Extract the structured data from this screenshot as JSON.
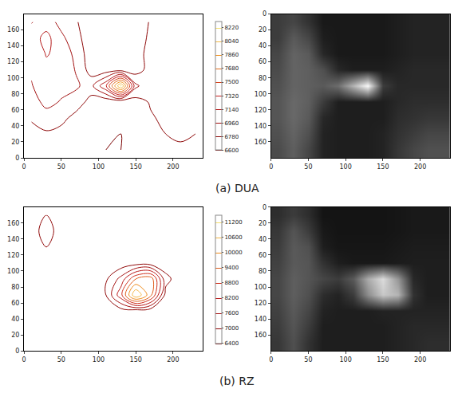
{
  "chart_data": [
    {
      "type": "contour",
      "caption": "(a) DUA",
      "x": [
        10,
        30,
        50,
        70,
        90,
        110,
        130,
        150,
        170,
        190,
        210,
        230
      ],
      "y": [
        10,
        30,
        50,
        70,
        90,
        110,
        130,
        150,
        170
      ],
      "z": [
        [
          6700,
          6720,
          6650,
          6620,
          6610,
          6600,
          6600,
          6620,
          6700,
          6750,
          6760,
          6750
        ],
        [
          6720,
          6750,
          6700,
          6640,
          6620,
          6610,
          6600,
          6640,
          6720,
          6780,
          6800,
          6780
        ],
        [
          6800,
          6900,
          6850,
          6700,
          6640,
          6620,
          6610,
          6660,
          6760,
          6820,
          6850,
          6820
        ],
        [
          6900,
          7000,
          6950,
          6900,
          6700,
          6640,
          6620,
          6700,
          6800,
          6850,
          6880,
          6850
        ],
        [
          6950,
          7050,
          7000,
          6980,
          6900,
          7300,
          8250,
          7000,
          6820,
          6880,
          6900,
          6870
        ],
        [
          6980,
          7100,
          7050,
          6950,
          6700,
          6680,
          6700,
          6700,
          6850,
          6900,
          6900,
          6880
        ],
        [
          7000,
          7150,
          7100,
          6900,
          6680,
          6650,
          6640,
          6700,
          6850,
          6920,
          6900,
          6880
        ],
        [
          7050,
          7200,
          7000,
          6850,
          6650,
          6640,
          6630,
          6680,
          6820,
          6900,
          6880,
          6860
        ],
        [
          6950,
          7050,
          6900,
          6800,
          6640,
          6630,
          6620,
          6660,
          6800,
          6880,
          6860,
          6850
        ]
      ],
      "xlim": [
        0,
        240
      ],
      "ylim": [
        0,
        180
      ],
      "xticks": [
        0,
        50,
        100,
        150,
        200
      ],
      "yticks": [
        0,
        20,
        40,
        60,
        80,
        100,
        120,
        140,
        160
      ],
      "zlim": [
        6600,
        8300
      ],
      "zticks": [
        6600,
        6780,
        6960,
        7140,
        7320,
        7500,
        7680,
        7860,
        8040,
        8220
      ]
    },
    {
      "type": "heatmap",
      "x": [
        10,
        30,
        50,
        70,
        90,
        110,
        130,
        150,
        170,
        190,
        210,
        230
      ],
      "y": [
        10,
        30,
        50,
        70,
        90,
        110,
        130,
        150,
        170
      ],
      "z": [
        [
          60,
          70,
          50,
          25,
          25,
          25,
          25,
          25,
          30,
          35,
          35,
          35
        ],
        [
          60,
          90,
          70,
          30,
          25,
          25,
          25,
          25,
          30,
          35,
          35,
          35
        ],
        [
          70,
          100,
          90,
          40,
          25,
          25,
          25,
          25,
          30,
          35,
          35,
          35
        ],
        [
          75,
          100,
          95,
          80,
          40,
          30,
          30,
          30,
          35,
          40,
          40,
          40
        ],
        [
          80,
          100,
          95,
          90,
          110,
          180,
          250,
          60,
          40,
          40,
          40,
          40
        ],
        [
          85,
          105,
          95,
          60,
          30,
          30,
          30,
          30,
          40,
          45,
          45,
          45
        ],
        [
          85,
          105,
          90,
          40,
          30,
          30,
          30,
          30,
          45,
          50,
          55,
          55
        ],
        [
          80,
          100,
          80,
          35,
          30,
          30,
          30,
          35,
          50,
          60,
          70,
          70
        ],
        [
          75,
          95,
          70,
          35,
          30,
          30,
          30,
          35,
          55,
          70,
          80,
          80
        ]
      ],
      "xlim": [
        0,
        240
      ],
      "ylim": [
        180,
        0
      ],
      "xticks": [
        0,
        50,
        100,
        150,
        200
      ],
      "yticks": [
        0,
        20,
        40,
        60,
        80,
        100,
        120,
        140,
        160
      ],
      "zlim": [
        0,
        255
      ]
    },
    {
      "type": "contour",
      "caption": "(b) RZ",
      "x": [
        10,
        30,
        50,
        70,
        90,
        110,
        130,
        150,
        170,
        190,
        210,
        230
      ],
      "y": [
        10,
        30,
        50,
        70,
        90,
        110,
        130,
        150,
        170
      ],
      "z": [
        [
          6600,
          6650,
          6600,
          6500,
          6450,
          6450,
          6450,
          6450,
          6500,
          6550,
          6550,
          6550
        ],
        [
          6650,
          6700,
          6650,
          6500,
          6450,
          6450,
          6450,
          6450,
          6500,
          6550,
          6550,
          6550
        ],
        [
          6700,
          6800,
          6700,
          6550,
          6500,
          6600,
          6700,
          6650,
          6550,
          6600,
          6600,
          6600
        ],
        [
          6750,
          6850,
          6750,
          6700,
          6650,
          7000,
          8600,
          11200,
          9600,
          6800,
          6650,
          6600
        ],
        [
          6800,
          6900,
          6800,
          6750,
          6700,
          6900,
          7800,
          9400,
          9800,
          7200,
          6650,
          6600
        ],
        [
          6850,
          6950,
          6850,
          6750,
          6600,
          6550,
          6600,
          6700,
          6650,
          6650,
          6600,
          6600
        ],
        [
          6900,
          7000,
          6900,
          6700,
          6550,
          6500,
          6500,
          6550,
          6600,
          6600,
          6600,
          6600
        ],
        [
          6950,
          7050,
          6950,
          6700,
          6550,
          6500,
          6500,
          6550,
          6600,
          6600,
          6600,
          6600
        ],
        [
          6900,
          7000,
          6900,
          6650,
          6550,
          6500,
          6500,
          6550,
          6600,
          6600,
          6600,
          6600
        ]
      ],
      "xlim": [
        0,
        240
      ],
      "ylim": [
        0,
        180
      ],
      "xticks": [
        0,
        50,
        100,
        150,
        200
      ],
      "yticks": [
        0,
        20,
        40,
        60,
        80,
        100,
        120,
        140,
        160
      ],
      "zlim": [
        6400,
        11500
      ],
      "zticks": [
        6400,
        7000,
        7600,
        8200,
        8800,
        9400,
        10000,
        10600,
        11200
      ]
    },
    {
      "type": "heatmap",
      "x": [
        10,
        30,
        50,
        70,
        90,
        110,
        130,
        150,
        170,
        190,
        210,
        230
      ],
      "y": [
        10,
        30,
        50,
        70,
        90,
        110,
        130,
        150,
        170
      ],
      "z": [
        [
          45,
          60,
          45,
          20,
          20,
          20,
          20,
          20,
          22,
          25,
          25,
          25
        ],
        [
          55,
          85,
          60,
          25,
          20,
          20,
          20,
          20,
          22,
          25,
          25,
          25
        ],
        [
          60,
          90,
          80,
          30,
          22,
          22,
          22,
          22,
          25,
          28,
          28,
          28
        ],
        [
          65,
          90,
          85,
          50,
          30,
          25,
          25,
          25,
          28,
          30,
          30,
          30
        ],
        [
          70,
          95,
          85,
          70,
          60,
          90,
          170,
          220,
          150,
          40,
          30,
          30
        ],
        [
          70,
          95,
          80,
          45,
          35,
          60,
          140,
          200,
          180,
          50,
          30,
          30
        ],
        [
          65,
          90,
          70,
          35,
          30,
          30,
          30,
          35,
          35,
          35,
          35,
          35
        ],
        [
          60,
          85,
          60,
          30,
          30,
          30,
          30,
          30,
          35,
          40,
          40,
          40
        ],
        [
          55,
          80,
          50,
          30,
          30,
          30,
          30,
          30,
          35,
          40,
          45,
          45
        ]
      ],
      "xlim": [
        0,
        240
      ],
      "ylim": [
        180,
        0
      ],
      "xticks": [
        0,
        50,
        100,
        150,
        200
      ],
      "yticks": [
        0,
        20,
        40,
        60,
        80,
        100,
        120,
        140,
        160
      ],
      "zlim": [
        0,
        255
      ]
    }
  ]
}
